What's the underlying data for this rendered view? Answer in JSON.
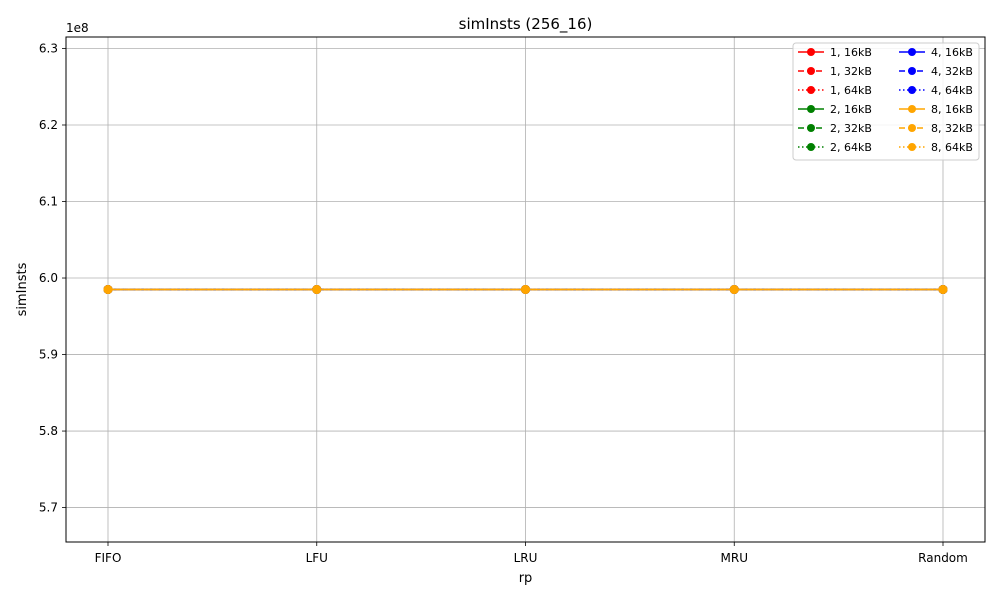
{
  "chart_data": {
    "type": "line",
    "title": "simInsts (256_16)",
    "xlabel": "rp",
    "ylabel": "simInsts",
    "y_offset_label": "1e8",
    "categories": [
      "FIFO",
      "LFU",
      "LRU",
      "MRU",
      "Random"
    ],
    "ylim": [
      565500000,
      631500000
    ],
    "yticks": [
      570000000,
      580000000,
      590000000,
      600000000,
      610000000,
      620000000,
      630000000
    ],
    "ytick_labels": [
      "5.7",
      "5.8",
      "5.9",
      "6.0",
      "6.1",
      "6.2",
      "6.3"
    ],
    "grid": true,
    "legend_position": "top-right",
    "legend_columns": 2,
    "series": [
      {
        "name": "1, 16kB",
        "color": "#ff0000",
        "dash": "solid",
        "values": [
          598500000,
          598500000,
          598500000,
          598500000,
          598500000
        ]
      },
      {
        "name": "1, 32kB",
        "color": "#ff0000",
        "dash": "dashed",
        "values": [
          598500000,
          598500000,
          598500000,
          598500000,
          598500000
        ]
      },
      {
        "name": "1, 64kB",
        "color": "#ff0000",
        "dash": "dotted",
        "values": [
          598500000,
          598500000,
          598500000,
          598500000,
          598500000
        ]
      },
      {
        "name": "2, 16kB",
        "color": "#008000",
        "dash": "solid",
        "values": [
          598500000,
          598500000,
          598500000,
          598500000,
          598500000
        ]
      },
      {
        "name": "2, 32kB",
        "color": "#008000",
        "dash": "dashed",
        "values": [
          598500000,
          598500000,
          598500000,
          598500000,
          598500000
        ]
      },
      {
        "name": "2, 64kB",
        "color": "#008000",
        "dash": "dotted",
        "values": [
          598500000,
          598500000,
          598500000,
          598500000,
          598500000
        ]
      },
      {
        "name": "4, 16kB",
        "color": "#0000ff",
        "dash": "solid",
        "values": [
          598500000,
          598500000,
          598500000,
          598500000,
          598500000
        ]
      },
      {
        "name": "4, 32kB",
        "color": "#0000ff",
        "dash": "dashed",
        "values": [
          598500000,
          598500000,
          598500000,
          598500000,
          598500000
        ]
      },
      {
        "name": "4, 64kB",
        "color": "#0000ff",
        "dash": "dotted",
        "values": [
          598500000,
          598500000,
          598500000,
          598500000,
          598500000
        ]
      },
      {
        "name": "8, 16kB",
        "color": "#ffa500",
        "dash": "solid",
        "values": [
          598500000,
          598500000,
          598500000,
          598500000,
          598500000
        ]
      },
      {
        "name": "8, 32kB",
        "color": "#ffa500",
        "dash": "dashed",
        "values": [
          598500000,
          598500000,
          598500000,
          598500000,
          598500000
        ]
      },
      {
        "name": "8, 64kB",
        "color": "#ffa500",
        "dash": "dotted",
        "values": [
          598500000,
          598500000,
          598500000,
          598500000,
          598500000
        ]
      }
    ]
  }
}
